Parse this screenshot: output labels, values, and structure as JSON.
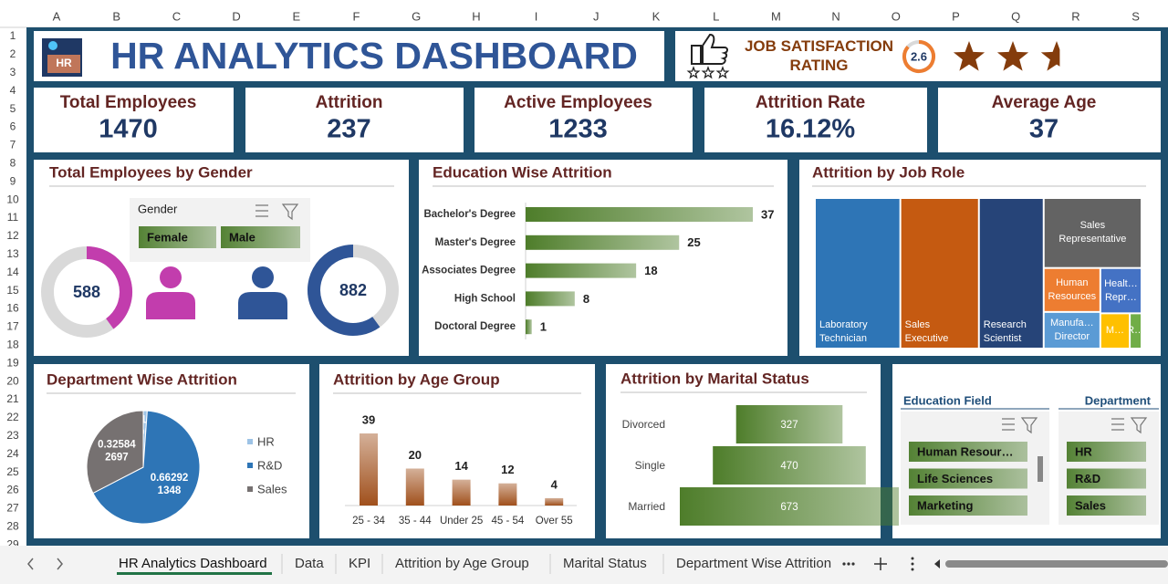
{
  "sheet": {
    "columns": [
      "A",
      "B",
      "C",
      "D",
      "E",
      "F",
      "G",
      "H",
      "I",
      "J",
      "K",
      "L",
      "M",
      "N",
      "O",
      "P",
      "Q",
      "R",
      "S"
    ],
    "rows": [
      1,
      2,
      3,
      4,
      5,
      6,
      7,
      8,
      9,
      10,
      11,
      12,
      13,
      14,
      15,
      16,
      17,
      18,
      19,
      20,
      21,
      22,
      23,
      24,
      25,
      26,
      27,
      28,
      29
    ]
  },
  "header": {
    "logo": "HR",
    "title": "HR ANALYTICS DASHBOARD"
  },
  "rating": {
    "label": "JOB SATISFACTION RATING",
    "value": 2.6
  },
  "kpis": [
    {
      "label": "Total Employees",
      "value": 1470
    },
    {
      "label": "Attrition",
      "value": 237
    },
    {
      "label": "Active Employees",
      "value": 1233
    },
    {
      "label": "Attrition Rate",
      "value": "16.12%"
    },
    {
      "label": "Average Age",
      "value": 37
    }
  ],
  "chart_data": [
    {
      "type": "donut",
      "title": "Total Employees by Gender",
      "slicer_title": "Gender",
      "categories": [
        "Female",
        "Male"
      ],
      "values": [
        588,
        882
      ],
      "colors": [
        "#c23dad",
        "#2f5597"
      ]
    },
    {
      "type": "bar",
      "horizontal": true,
      "title": "Education Wise Attrition",
      "categories": [
        "Bachelor's Degree",
        "Master's Degree",
        "Associates Degree",
        "High School",
        "Doctoral Degree"
      ],
      "values": [
        37,
        25,
        18,
        8,
        1
      ],
      "color": "#4e7d2a"
    },
    {
      "type": "treemap",
      "title": "Attrition by Job Role",
      "categories": [
        "Laboratory Technician",
        "Sales Executive",
        "Research Scientist",
        "Sales Representative",
        "Human Resources",
        "Healt… Repr…",
        "Manufa… Director",
        "M…",
        "R…"
      ],
      "values": [
        62,
        57,
        47,
        33,
        12,
        9,
        10,
        5,
        2
      ],
      "colors": [
        "#2e75b6",
        "#c55a11",
        "#264478",
        "#636363",
        "#ed7d31",
        "#4472c4",
        "#5b9bd5",
        "#ffc000",
        "#70ad47"
      ]
    },
    {
      "type": "pie",
      "title": "Department Wise Attrition",
      "categories": [
        "HR",
        "R&D",
        "Sales"
      ],
      "values": [
        0.011235955,
        0.662921348,
        0.325842697
      ],
      "colors": [
        "#9dc3e6",
        "#2e75b6",
        "#767171"
      ]
    },
    {
      "type": "bar",
      "title": "Attrition by Age Group",
      "categories": [
        "25 - 34",
        "35 - 44",
        "Under 25",
        "45 - 54",
        "Over 55"
      ],
      "values": [
        39,
        20,
        14,
        12,
        4
      ],
      "color": "#a0501c"
    },
    {
      "type": "funnel",
      "title": "Attrition by Marital Status",
      "categories": [
        "Divorced",
        "Single",
        "Married"
      ],
      "values": [
        327,
        470,
        673
      ],
      "color": "#4e7d2a"
    }
  ],
  "slicers": [
    {
      "title": "Education Field",
      "items": [
        "Human Resour…",
        "Life Sciences",
        "Marketing"
      ]
    },
    {
      "title": "Department",
      "items": [
        "HR",
        "R&D",
        "Sales"
      ]
    }
  ],
  "tabs": [
    "HR Analytics Dashboard",
    "Data",
    "KPI",
    "Attrition by Age Group",
    "Marital Status",
    "Department Wise Attrition"
  ]
}
